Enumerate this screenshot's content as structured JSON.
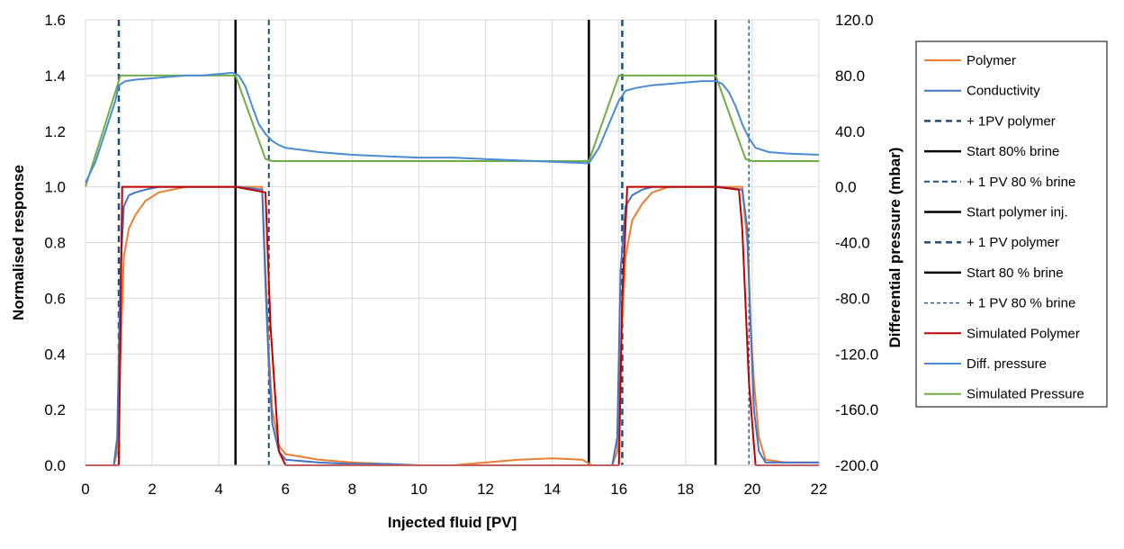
{
  "chart_data": {
    "type": "line",
    "xlabel": "Injected fluid [PV]",
    "ylabel": "Normalised response",
    "y2label": "Differential pressure (mbar)",
    "xlim": [
      0,
      22
    ],
    "ylim": [
      0,
      1.6
    ],
    "y2lim": [
      -200,
      120
    ],
    "xticks": [
      "0",
      "2",
      "4",
      "6",
      "8",
      "10",
      "12",
      "14",
      "16",
      "18",
      "20",
      "22"
    ],
    "yticks": [
      "0.0",
      "0.2",
      "0.4",
      "0.6",
      "0.8",
      "1.0",
      "1.2",
      "1.4",
      "1.6"
    ],
    "y2ticks": [
      "-200.0",
      "-160.0",
      "-120.0",
      "-80.0",
      "-40.0",
      "0.0",
      "40.0",
      "80.0",
      "120.0"
    ],
    "grid": true,
    "legend_position": "right",
    "series": [
      {
        "name": "Polymer",
        "color": "#ED7D31",
        "axis": "left",
        "x": [
          0,
          0.85,
          0.95,
          1.05,
          1.15,
          1.3,
          1.5,
          1.8,
          2.2,
          3,
          4,
          4.6,
          5.3,
          5.4,
          5.5,
          5.6,
          5.8,
          6,
          7,
          8,
          9,
          10,
          11,
          12,
          13,
          14,
          14.9,
          15.2,
          15.8,
          15.95,
          16.05,
          16.2,
          16.4,
          16.7,
          17,
          17.5,
          19,
          19.7,
          19.85,
          19.95,
          20.05,
          20.2,
          20.4,
          21,
          22
        ],
        "y": [
          0,
          0,
          0.05,
          0.4,
          0.75,
          0.85,
          0.9,
          0.95,
          0.98,
          1.0,
          1.0,
          1.0,
          1.0,
          0.7,
          0.4,
          0.2,
          0.07,
          0.04,
          0.02,
          0.01,
          0.005,
          0,
          0,
          0.01,
          0.02,
          0.025,
          0.02,
          0,
          0,
          0.05,
          0.4,
          0.75,
          0.88,
          0.94,
          0.98,
          1.0,
          1.0,
          1.0,
          0.8,
          0.5,
          0.3,
          0.1,
          0.02,
          0.01,
          0.01
        ]
      },
      {
        "name": "Conductivity",
        "color": "#4472C4",
        "axis": "left",
        "x": [
          0,
          0.85,
          0.95,
          1.05,
          1.15,
          1.3,
          1.5,
          1.8,
          2.2,
          3,
          4,
          4.6,
          5.3,
          5.4,
          5.5,
          5.6,
          5.8,
          6,
          7,
          8,
          9,
          10,
          11,
          12,
          13,
          14,
          14.9,
          15.2,
          15.8,
          15.95,
          16.05,
          16.2,
          16.4,
          16.7,
          17,
          17.5,
          19,
          19.7,
          19.85,
          19.95,
          20.05,
          20.2,
          20.4,
          21,
          22
        ],
        "y": [
          0,
          0,
          0.1,
          0.7,
          0.93,
          0.97,
          0.98,
          0.99,
          1.0,
          1.0,
          1.0,
          1.0,
          0.99,
          0.65,
          0.35,
          0.15,
          0.05,
          0.02,
          0.01,
          0.005,
          0.005,
          0,
          0,
          0,
          0,
          0,
          0,
          0,
          0,
          0.1,
          0.7,
          0.93,
          0.97,
          0.99,
          1.0,
          1.0,
          1.0,
          0.99,
          0.85,
          0.5,
          0.2,
          0.05,
          0.01,
          0.01,
          0.01
        ]
      },
      {
        "name": "+ 1PV polymer",
        "color": "#1F4E79",
        "axis": "left",
        "style": "dashed-thick",
        "vline": 1.0
      },
      {
        "name": "Start 80% brine",
        "color": "#000000",
        "axis": "left",
        "style": "solid",
        "vline": 4.5
      },
      {
        "name": "+ 1 PV 80 % brine",
        "color": "#1F4E79",
        "axis": "left",
        "style": "dashed",
        "vline": 5.5
      },
      {
        "name": "Start polymer inj.",
        "color": "#000000",
        "axis": "left",
        "style": "solid",
        "vline": 15.1
      },
      {
        "name": "+ 1 PV polymer",
        "color": "#1F4E79",
        "axis": "left",
        "style": "dashed-thick",
        "vline": 16.1
      },
      {
        "name": "Start 80 % brine",
        "color": "#000000",
        "axis": "left",
        "style": "solid",
        "vline": 18.9
      },
      {
        "name": "+ 1 PV 80 % brine",
        "color": "#1F4E79",
        "axis": "left",
        "style": "dashed-thin",
        "vline": 19.9
      },
      {
        "name": "Simulated Polymer",
        "color": "#C00000",
        "axis": "left",
        "x": [
          0,
          1.0,
          1.1,
          4.5,
          5.4,
          5.55,
          5.8,
          6.0,
          15.1,
          16.0,
          16.1,
          16.25,
          18.9,
          19.6,
          19.7,
          19.9,
          20.1,
          22
        ],
        "y": [
          0,
          0,
          1.0,
          1.0,
          0.98,
          0.5,
          0.05,
          0,
          0,
          0,
          0.6,
          1.0,
          1.0,
          0.99,
          0.85,
          0.3,
          0,
          0
        ]
      },
      {
        "name": "Diff. pressure",
        "color": "#4B8BD4",
        "axis": "right",
        "x": [
          0,
          0.3,
          0.6,
          0.9,
          1.0,
          1.2,
          1.5,
          2,
          2.5,
          3,
          3.5,
          4,
          4.4,
          4.6,
          4.8,
          5.0,
          5.2,
          5.4,
          5.6,
          5.8,
          6,
          7,
          8,
          9,
          10,
          11,
          12,
          13,
          14,
          15,
          15.1,
          15.4,
          15.7,
          16.0,
          16.2,
          16.5,
          17,
          17.5,
          18,
          18.5,
          18.9,
          19.1,
          19.3,
          19.5,
          19.7,
          19.9,
          20.1,
          20.5,
          21,
          22
        ],
        "y": [
          3,
          18,
          40,
          62,
          73,
          76,
          77,
          78,
          79,
          80,
          80,
          81,
          82,
          80,
          72,
          58,
          45,
          38,
          33,
          30,
          28,
          25,
          23,
          22,
          21,
          21,
          20,
          19,
          18,
          17,
          17,
          28,
          45,
          62,
          69,
          71,
          73,
          74,
          75,
          76,
          76,
          74,
          68,
          58,
          45,
          35,
          28,
          25,
          24,
          23
        ]
      },
      {
        "name": "Simulated Pressure",
        "color": "#70AD47",
        "axis": "right",
        "x": [
          0,
          1.05,
          4.5,
          5.4,
          5.6,
          15.1,
          16.0,
          18.9,
          19.8,
          20.0,
          22
        ],
        "y": [
          0,
          80,
          80,
          20,
          18.5,
          18.5,
          80,
          80,
          20,
          18.5,
          18.5
        ]
      }
    ]
  }
}
